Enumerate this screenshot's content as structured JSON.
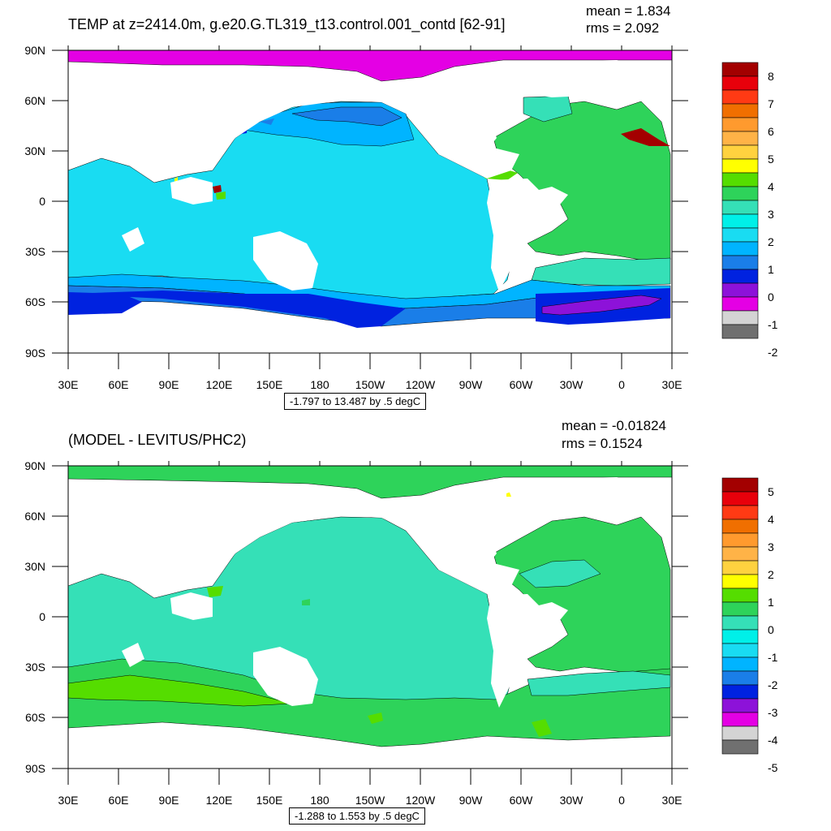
{
  "panels": [
    {
      "title": "TEMP at z=2414.0m, g.e20.G.TL319_t13.control.001_contd [62-91]",
      "mean_label": "mean = 1.834",
      "rms_label": "rms = 2.092",
      "caption": "-1.797 to 13.487 by .5 degC",
      "colorbar": {
        "labels": [
          "8",
          "7",
          "6",
          "5",
          "4",
          "3",
          "2",
          "1",
          "0",
          "-1",
          "-2"
        ],
        "colors": [
          "#a30000",
          "#e8000b",
          "#ff3a14",
          "#f06f00",
          "#ff9a2e",
          "#ffb347",
          "#ffd23f",
          "#ffff00",
          "#55dd00",
          "#2ed35a",
          "#35e0b7",
          "#00f0e8",
          "#19dcf2",
          "#00b4ff",
          "#1a7ee8",
          "#0022e0",
          "#8d12d9",
          "#e400e4",
          "#d4d4d4",
          "#707070"
        ]
      }
    },
    {
      "title": "(MODEL - LEVITUS/PHC2)",
      "mean_label": "mean = -0.01824",
      "rms_label": "rms = 0.1524",
      "caption": "-1.288 to 1.553 by .5 degC",
      "colorbar": {
        "labels": [
          "5",
          "4",
          "3",
          "2",
          "1",
          "0",
          "-1",
          "-2",
          "-3",
          "-4",
          "-5"
        ],
        "colors": [
          "#a30000",
          "#e8000b",
          "#ff3a14",
          "#f06f00",
          "#ff9a2e",
          "#ffb347",
          "#ffd23f",
          "#ffff00",
          "#55dd00",
          "#2ed35a",
          "#35e0b7",
          "#00f0e8",
          "#19dcf2",
          "#00b4ff",
          "#1a7ee8",
          "#0022e0",
          "#8d12d9",
          "#e400e4",
          "#d4d4d4",
          "#707070"
        ]
      }
    }
  ],
  "axes": {
    "x_ticks": [
      "30E",
      "60E",
      "90E",
      "120E",
      "150E",
      "180",
      "150W",
      "120W",
      "90W",
      "60W",
      "30W",
      "0",
      "30E"
    ],
    "y_ticks": [
      "90N",
      "60N",
      "30N",
      "0",
      "30S",
      "60S",
      "90S"
    ]
  }
}
